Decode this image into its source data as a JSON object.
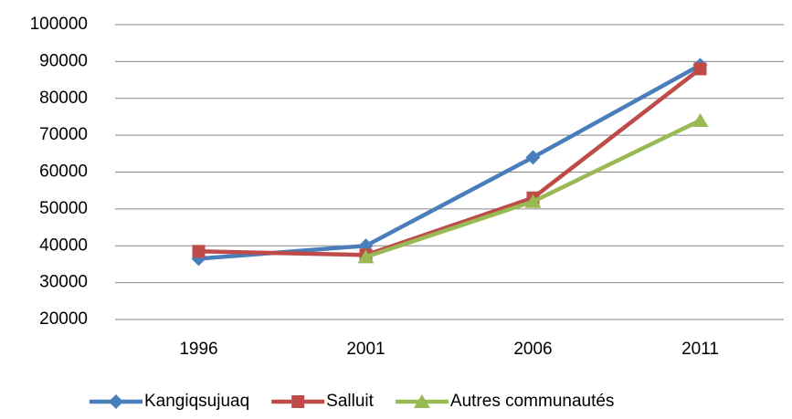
{
  "chart_data": {
    "type": "line",
    "categories": [
      "1996",
      "2001",
      "2006",
      "2011"
    ],
    "series": [
      {
        "name": "Kangiqsujuaq",
        "color": "#4a7ebb",
        "marker": "diamond",
        "values": [
          36500,
          40000,
          64000,
          89000
        ]
      },
      {
        "name": "Salluit",
        "color": "#be4b48",
        "marker": "square",
        "values": [
          38500,
          37500,
          53000,
          88000
        ]
      },
      {
        "name": "Autres communautés",
        "color": "#98b954",
        "marker": "triangle",
        "values": [
          null,
          37000,
          52000,
          74000
        ]
      }
    ],
    "ylim": [
      20000,
      100000
    ],
    "yticks": [
      20000,
      30000,
      40000,
      50000,
      60000,
      70000,
      80000,
      90000,
      100000
    ],
    "grid": true,
    "legend": "bottom"
  }
}
